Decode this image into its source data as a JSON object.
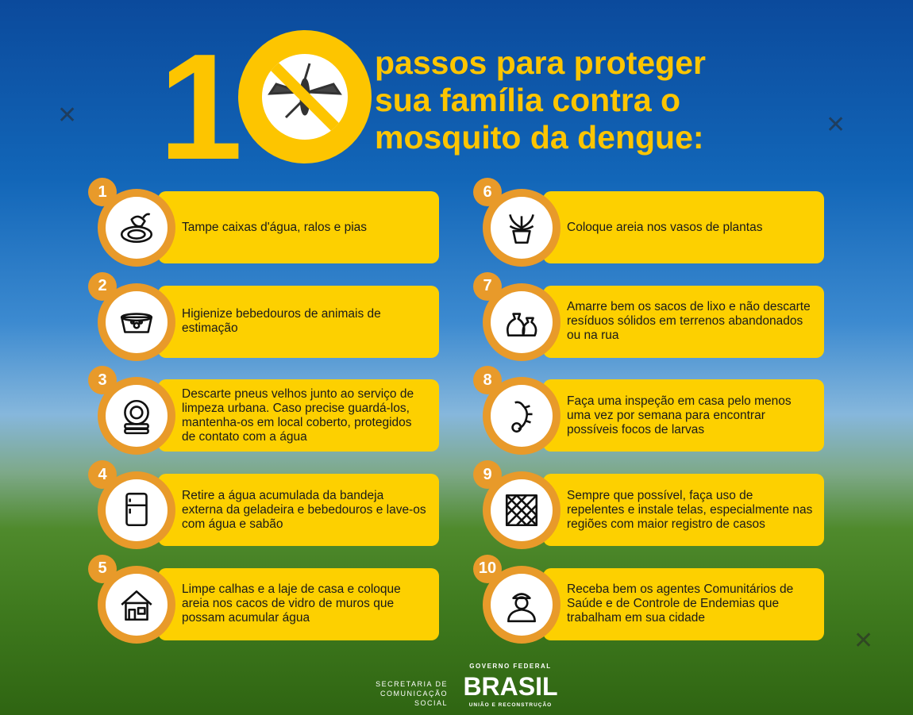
{
  "header": {
    "number": "10",
    "lines": [
      "passos para proteger",
      "sua família contra o",
      "mosquito da dengue:"
    ],
    "icon": "no-mosquito-icon"
  },
  "steps": [
    {
      "n": "1",
      "text": "Tampe caixas d'água, ralos e pias",
      "icon": "drain-icon"
    },
    {
      "n": "2",
      "text": "Higienize bebedouros de animais de estimação",
      "icon": "pet-bowl-icon"
    },
    {
      "n": "3",
      "text": "Descarte pneus velhos junto ao serviço de limpeza urbana. Caso precise guardá-los, mantenha-os em local coberto, protegidos de contato com a água",
      "icon": "tire-icon"
    },
    {
      "n": "4",
      "text": "Retire a água acumulada da bandeja externa da geladeira e bebedouros e lave-os com água e sabão",
      "icon": "fridge-icon"
    },
    {
      "n": "5",
      "text": "Limpe calhas e a laje de casa e coloque areia nos cacos de vidro de muros que possam acumular água",
      "icon": "house-icon"
    },
    {
      "n": "6",
      "text": "Coloque areia nos vasos de plantas",
      "icon": "plant-pot-icon"
    },
    {
      "n": "7",
      "text": "Amarre bem os sacos de lixo e não descarte resíduos sólidos em terrenos abandonados ou na rua",
      "icon": "trash-bag-icon"
    },
    {
      "n": "8",
      "text": "Faça uma inspeção em casa pelo menos uma vez por semana para encontrar possíveis focos de larvas",
      "icon": "larva-icon"
    },
    {
      "n": "9",
      "text": "Sempre que possível, faça uso de repelentes e instale telas, especialmente nas regiões com maior registro de casos",
      "icon": "screen-net-icon"
    },
    {
      "n": "10",
      "text": "Receba bem os agentes Comunitários de Saúde e de Controle de Endemias que trabalham em sua cidade",
      "icon": "health-agent-icon"
    }
  ],
  "footer": {
    "secretaria_1": "SECRETARIA DE",
    "secretaria_2": "COMUNICAÇÃO SOCIAL",
    "gov": "GOVERNO FEDERAL",
    "brasil": "BRASIL",
    "slogan": "UNIÃO E RECONSTRUÇÃO"
  },
  "colors": {
    "yellow": "#fdd000",
    "orange": "#e89a2a",
    "title": "#fdc500"
  }
}
